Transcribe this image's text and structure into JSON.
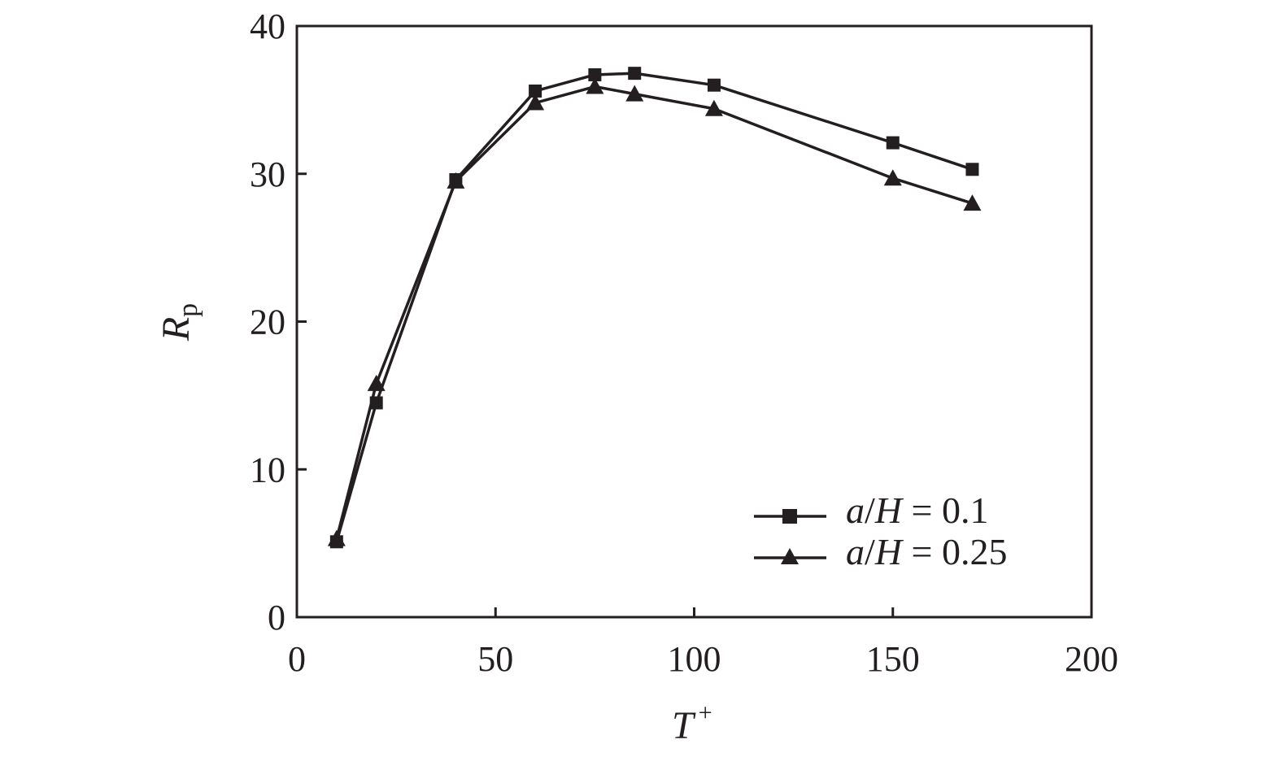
{
  "chart_data": {
    "type": "line",
    "title": "",
    "xlabel": "T+",
    "ylabel": "Rp",
    "xlim": [
      0,
      200
    ],
    "ylim": [
      0,
      40
    ],
    "xticks": [
      0,
      50,
      100,
      150,
      200
    ],
    "yticks": [
      0,
      10,
      20,
      30,
      40
    ],
    "grid": false,
    "legend_position": "lower right",
    "series": [
      {
        "name": "a/H = 0.1",
        "marker": "square",
        "x": [
          10,
          20,
          40,
          60,
          75,
          85,
          105,
          150,
          170
        ],
        "y": [
          5.1,
          14.5,
          29.6,
          35.6,
          36.7,
          36.8,
          36.0,
          32.1,
          30.3
        ]
      },
      {
        "name": "a/H = 0.25",
        "marker": "triangle",
        "x": [
          10,
          20,
          40,
          60,
          75,
          85,
          105,
          150,
          170
        ],
        "y": [
          5.3,
          15.8,
          29.5,
          34.8,
          35.9,
          35.4,
          34.4,
          29.7,
          28.0
        ]
      }
    ]
  },
  "legend": {
    "items": [
      {
        "prefix_italic": "a",
        "slash": "/",
        "var_italic": "H",
        "rest": " = 0.1"
      },
      {
        "prefix_italic": "a",
        "slash": "/",
        "var_italic": "H",
        "rest": " = 0.25"
      }
    ]
  },
  "axes": {
    "x_label_main": "T",
    "x_label_sup": "+",
    "y_label_main": "R",
    "y_label_sub": "p"
  },
  "colors": {
    "ink": "#231f20",
    "background": "#ffffff"
  }
}
